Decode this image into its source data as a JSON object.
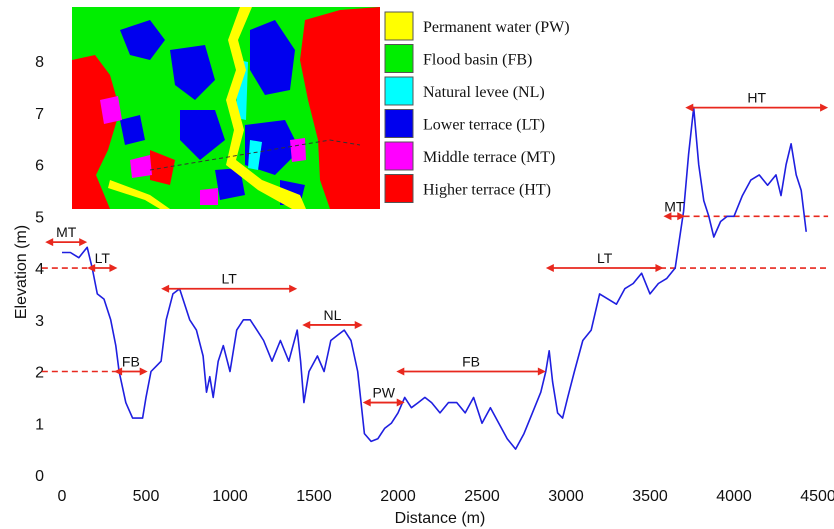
{
  "chart_data": {
    "type": "line",
    "xlabel": "Distance (m)",
    "ylabel": "Elevation (m)",
    "xlim": [
      0,
      4500
    ],
    "ylim": [
      0,
      8.6
    ],
    "x_ticks": [
      "0",
      "500",
      "1000",
      "1500",
      "2000",
      "2500",
      "3000",
      "3500",
      "4000",
      "4500"
    ],
    "y_ticks": [
      "0",
      "1",
      "2",
      "3",
      "4",
      "5",
      "6",
      "7",
      "8"
    ],
    "series": [
      {
        "color": "#1f1fe0",
        "x": [
          0,
          50,
          100,
          150,
          180,
          210,
          250,
          290,
          320,
          340,
          380,
          420,
          450,
          480,
          500,
          530,
          560,
          590,
          620,
          660,
          700,
          760,
          800,
          840,
          860,
          880,
          900,
          930,
          960,
          1000,
          1040,
          1080,
          1120,
          1160,
          1200,
          1250,
          1300,
          1350,
          1400,
          1420,
          1440,
          1470,
          1520,
          1560,
          1600,
          1640,
          1680,
          1720,
          1760,
          1800,
          1840,
          1880,
          1920,
          1960,
          2000,
          2040,
          2080,
          2120,
          2160,
          2200,
          2250,
          2300,
          2350,
          2400,
          2450,
          2500,
          2550,
          2600,
          2650,
          2700,
          2750,
          2800,
          2850,
          2880,
          2900,
          2920,
          2950,
          2980,
          3010,
          3050,
          3100,
          3150,
          3200,
          3250,
          3300,
          3350,
          3400,
          3450,
          3500,
          3550,
          3600,
          3650,
          3700,
          3730,
          3760,
          3790,
          3820,
          3850,
          3880,
          3920,
          3960,
          4000,
          4050,
          4100,
          4150,
          4200,
          4250,
          4280,
          4310,
          4340,
          4370,
          4400,
          4430
        ],
        "y": [
          4.3,
          4.3,
          4.2,
          4.4,
          4.0,
          3.5,
          3.4,
          3.0,
          2.5,
          2.0,
          1.4,
          1.1,
          1.1,
          1.1,
          1.5,
          2.0,
          2.1,
          2.2,
          3.0,
          3.5,
          3.6,
          3.0,
          2.8,
          2.3,
          1.6,
          1.9,
          1.5,
          2.2,
          2.5,
          2.0,
          2.8,
          3.0,
          3.0,
          2.8,
          2.6,
          2.2,
          2.6,
          2.2,
          2.8,
          2.2,
          1.4,
          2.0,
          2.3,
          2.0,
          2.6,
          2.7,
          2.8,
          2.6,
          2.0,
          0.8,
          0.65,
          0.7,
          0.9,
          1.0,
          1.2,
          1.5,
          1.3,
          1.4,
          1.5,
          1.4,
          1.2,
          1.4,
          1.4,
          1.2,
          1.5,
          1.0,
          1.3,
          1.0,
          0.7,
          0.5,
          0.8,
          1.2,
          1.6,
          2.0,
          2.4,
          1.8,
          1.2,
          1.1,
          1.5,
          2.0,
          2.6,
          2.8,
          3.5,
          3.4,
          3.3,
          3.6,
          3.7,
          3.9,
          3.5,
          3.7,
          3.8,
          4.0,
          5.1,
          6.2,
          7.1,
          6.0,
          5.3,
          5.0,
          4.6,
          4.9,
          5.0,
          5.0,
          5.4,
          5.7,
          5.8,
          5.6,
          5.8,
          5.4,
          6.0,
          6.4,
          5.8,
          5.5,
          4.7
        ]
      }
    ],
    "annotations": [
      {
        "label": "MT",
        "x1": -100,
        "x2": 150,
        "y": 4.5,
        "color": "#e8281e"
      },
      {
        "label": "LT",
        "x1": 150,
        "x2": 330,
        "y": 4.0,
        "color": "#e8281e"
      },
      {
        "label": "FB",
        "x1": 310,
        "x2": 510,
        "y": 2.0,
        "color": "#e8281e"
      },
      {
        "label": "LT",
        "x1": 590,
        "x2": 1400,
        "y": 3.6,
        "color": "#e8281e"
      },
      {
        "label": "NL",
        "x1": 1430,
        "x2": 1790,
        "y": 2.9,
        "color": "#e8281e"
      },
      {
        "label": "PW",
        "x1": 1790,
        "x2": 2040,
        "y": 1.4,
        "color": "#e8281e"
      },
      {
        "label": "FB",
        "x1": 1990,
        "x2": 2880,
        "y": 2.0,
        "color": "#e8281e"
      },
      {
        "label": "LT",
        "x1": 2880,
        "x2": 3580,
        "y": 4.0,
        "color": "#e8281e"
      },
      {
        "label": "MT",
        "x1": 3580,
        "x2": 3710,
        "y": 5.0,
        "color": "#e8281e"
      },
      {
        "label": "HT",
        "x1": 3710,
        "x2": 4560,
        "y": 7.1,
        "color": "#e8281e"
      }
    ],
    "reference_lines": [
      {
        "y": 2.0,
        "x1": -120,
        "x2": 370,
        "color": "#e8281e"
      },
      {
        "y": 4.0,
        "x1": -120,
        "x2": 150,
        "color": "#e8281e"
      },
      {
        "y": 4.0,
        "x1": 3500,
        "x2": 4560,
        "color": "#e8281e"
      },
      {
        "y": 5.0,
        "x1": 3700,
        "x2": 4560,
        "color": "#e8281e"
      }
    ],
    "legend": {
      "placement": "top-center",
      "items": [
        {
          "label": "Permanent water (PW)",
          "color": "#ffff00"
        },
        {
          "label": "Flood basin (FB)",
          "color": "#00ee00"
        },
        {
          "label": "Natural levee (NL)",
          "color": "#00ffff"
        },
        {
          "label": "Lower terrace (LT)",
          "color": "#0000ee"
        },
        {
          "label": "Middle terrace (MT)",
          "color": "#ff00ff"
        },
        {
          "label": "Higher terrace (HT)",
          "color": "#ff0000"
        }
      ]
    }
  }
}
